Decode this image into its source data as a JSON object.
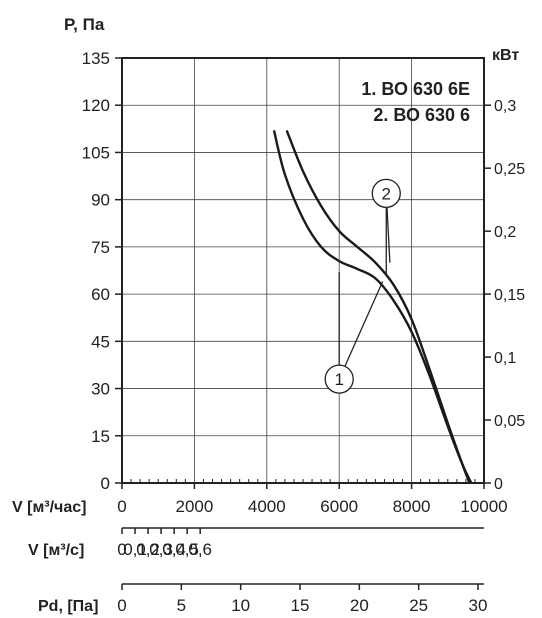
{
  "chart_data": {
    "type": "line",
    "title": "",
    "ylabel": "P, Па",
    "y2label": "кВт",
    "ylim": [
      0,
      135
    ],
    "y2lim": [
      0,
      0.3375
    ],
    "xlim": [
      0,
      10000
    ],
    "yticks": [
      "0",
      "15",
      "30",
      "45",
      "60",
      "75",
      "90",
      "105",
      "120",
      "135"
    ],
    "y2ticks": [
      "0",
      "0,05",
      "0,1",
      "0,15",
      "0,2",
      "0,25",
      "0,3"
    ],
    "y2tick_values": [
      0,
      0.05,
      0.1,
      0.15,
      0.2,
      0.25,
      0.3
    ],
    "grid": true,
    "legend": {
      "position": "top-right",
      "entries": [
        "1. ВО 630 6Е",
        "2. ВО 630 6"
      ]
    },
    "axes_bottom": [
      {
        "label": "V [м³/час]",
        "ticks": [
          "0",
          "2000",
          "4000",
          "6000",
          "8000",
          "10000"
        ],
        "tick_values": [
          0,
          2000,
          4000,
          6000,
          8000,
          10000
        ]
      },
      {
        "label": "V [м³/с]",
        "ticks": [
          "0",
          "0,1",
          "0,2",
          "0,3",
          "0,4",
          "0,5",
          "0,6"
        ],
        "tick_values": [
          0,
          0.1,
          0.2,
          0.3,
          0.4,
          0.5,
          0.6
        ],
        "unit_to_m3h": 3600
      },
      {
        "label": "Pd, [Па]",
        "ticks": [
          "0",
          "5",
          "10",
          "15",
          "20",
          "25",
          "30"
        ],
        "tick_values": [
          0,
          5,
          10,
          15,
          20,
          25,
          30
        ],
        "axis_max": 30
      }
    ],
    "series": [
      {
        "name": "1",
        "x": [
          4200,
          4500,
          5000,
          5500,
          6000,
          6500,
          7000,
          7500,
          8000,
          8500,
          9000,
          9400,
          9650
        ],
        "y": [
          112,
          98,
          84,
          75,
          70.5,
          68,
          65,
          58,
          48,
          34,
          18,
          6,
          0
        ]
      },
      {
        "name": "2",
        "x": [
          4550,
          5000,
          5500,
          6000,
          6500,
          7000,
          7500,
          8000,
          8500,
          9000,
          9400,
          9600
        ],
        "y": [
          112,
          99,
          88,
          80,
          75,
          70,
          63,
          52,
          36,
          19,
          6,
          0
        ]
      }
    ],
    "callouts": [
      {
        "label": "2",
        "points_to": [
          [
            7300,
            66
          ],
          [
            7400,
            70
          ]
        ],
        "position": [
          7300,
          92
        ]
      },
      {
        "label": "1",
        "points_to": [
          [
            6000,
            67
          ],
          [
            7200,
            64
          ]
        ],
        "position": [
          6000,
          33
        ]
      }
    ]
  }
}
